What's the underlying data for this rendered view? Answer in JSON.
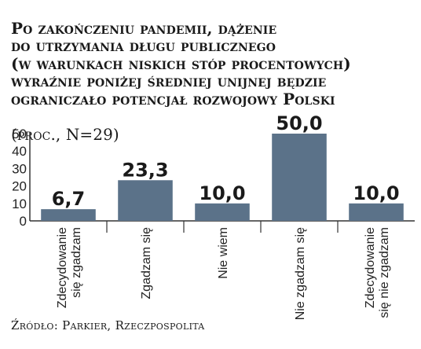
{
  "chart_data": {
    "type": "bar",
    "title": "Po zakończeniu pandemii, dążenie do utrzymania długu publicznego (w warunkach niskich stóp procentowych) wyraźnie poniżej średniej unijnej będzie ograniczało potencjał rozwojowy Polski",
    "subtitle": "(proc., N=29)",
    "categories": [
      "Zdecydowanie się zgadzam",
      "Zgadzam się",
      "Nie wiem",
      "Nie zgadzam się",
      "Zdecydowanie się nie zgadzam"
    ],
    "category_lines": [
      [
        "Zdecydowanie",
        "się zgadzam"
      ],
      [
        "Zgadzam się"
      ],
      [
        "Nie wiem"
      ],
      [
        "Nie zgadzam się"
      ],
      [
        "Zdecydowanie",
        "się nie zgadzam"
      ]
    ],
    "values": [
      6.7,
      23.3,
      10.0,
      50.0,
      10.0
    ],
    "data_labels": [
      "6,7",
      "23,3",
      "10,0",
      "50,0",
      "10,0"
    ],
    "ylim": [
      0,
      50
    ],
    "yticks": [
      0,
      10,
      20,
      30,
      40,
      50
    ],
    "grid": false,
    "bar_color": "#5b7289",
    "source": "Źródło: Parkier, Rzeczpospolita"
  },
  "title_lines": "Po zakończeniu pandemii, dążenie\ndo utrzymania długu publicznego\n(w warunkach niskich stóp procentowych)\nwyraźnie poniżej średniej unijnej będzie\nograniczało potencjał rozwojowy Polski"
}
